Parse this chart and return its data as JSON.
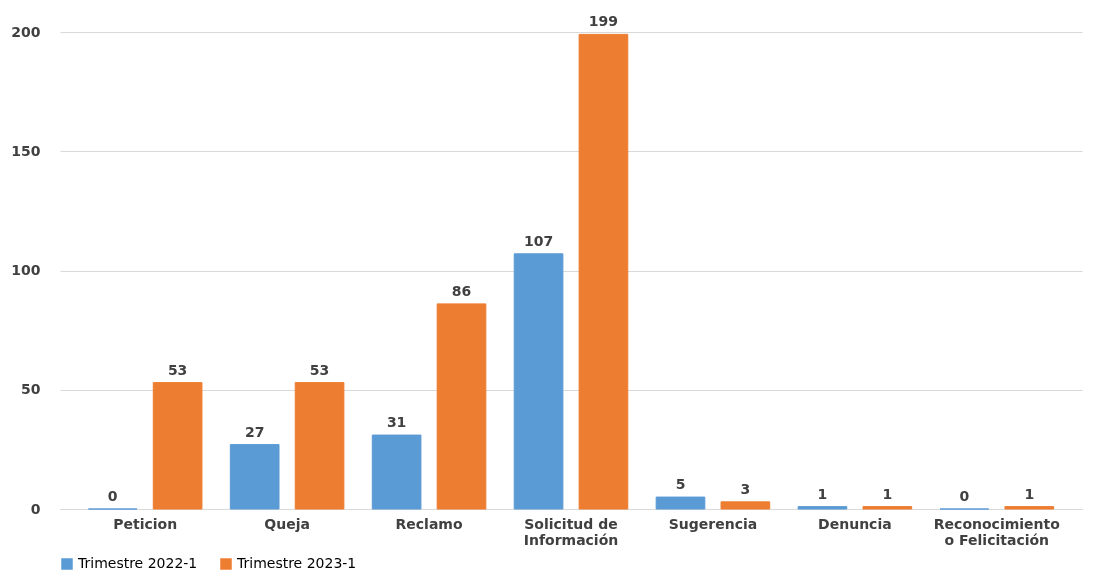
{
  "chart_data": {
    "type": "bar",
    "categories": [
      "Peticion",
      "Queja",
      "Reclamo",
      "Solicitud de\nInformación",
      "Sugerencia",
      "Denuncia",
      "Reconocimiento\no Felicitación"
    ],
    "series": [
      {
        "name": "Trimestre 2022-1",
        "color": "#5b9bd5",
        "values": [
          0,
          27,
          31,
          107,
          5,
          1,
          0
        ]
      },
      {
        "name": "Trimestre 2023-1",
        "color": "#ed7d31",
        "values": [
          53,
          53,
          86,
          199,
          3,
          1,
          1
        ]
      }
    ],
    "ylim": [
      0,
      200
    ],
    "yticks": [
      0,
      50,
      100,
      150,
      200
    ],
    "grid": "y",
    "legend": "bottom",
    "data_labels": true
  }
}
